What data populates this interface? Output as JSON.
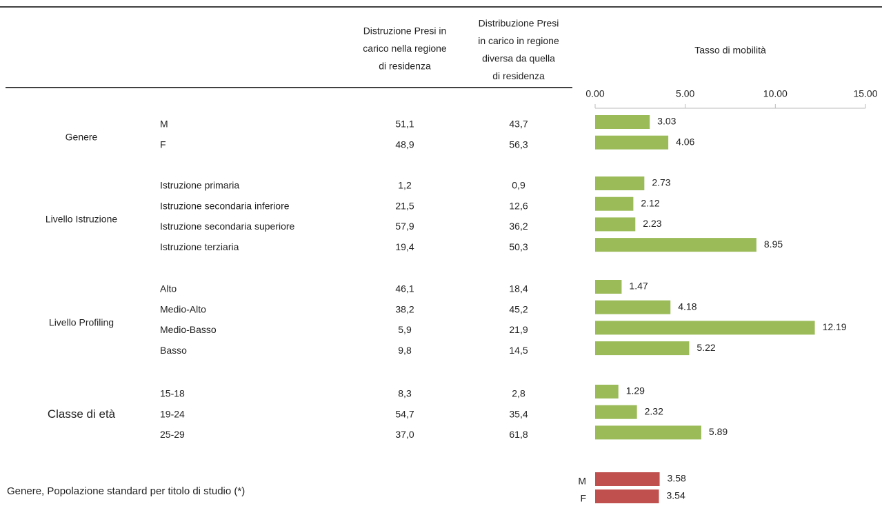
{
  "header": {
    "col1": [
      "Distruzione Presi in",
      "carico nella regione",
      "di residenza"
    ],
    "col2": [
      "Distribuzione Presi",
      "in carico in regione",
      "diversa da quella",
      "di residenza"
    ],
    "col3": "Tasso di mobilità"
  },
  "axis": {
    "xlim": [
      0,
      15
    ],
    "xticks": [
      {
        "value": 0,
        "label": "0.00"
      },
      {
        "value": 5,
        "label": "5.00"
      },
      {
        "value": 10,
        "label": "10.00"
      },
      {
        "value": 15,
        "label": "15.00"
      }
    ]
  },
  "groups": [
    {
      "label": "Genere",
      "rows": [
        {
          "label": "M",
          "col1": "51,1",
          "col2": "43,7",
          "rate": 3.03
        },
        {
          "label": "F",
          "col1": "48,9",
          "col2": "56,3",
          "rate": 4.06
        }
      ]
    },
    {
      "label": "Livello Istruzione",
      "rows": [
        {
          "label": "Istruzione primaria",
          "col1": "1,2",
          "col2": "0,9",
          "rate": 2.73
        },
        {
          "label": "Istruzione secondaria inferiore",
          "col1": "21,5",
          "col2": "12,6",
          "rate": 2.12
        },
        {
          "label": "Istruzione secondaria superiore",
          "col1": "57,9",
          "col2": "36,2",
          "rate": 2.23
        },
        {
          "label": "Istruzione terziaria",
          "col1": "19,4",
          "col2": "50,3",
          "rate": 8.95
        }
      ]
    },
    {
      "label": "Livello Profiling",
      "rows": [
        {
          "label": "Alto",
          "col1": "46,1",
          "col2": "18,4",
          "rate": 1.47
        },
        {
          "label": "Medio-Alto",
          "col1": "38,2",
          "col2": "45,2",
          "rate": 4.18
        },
        {
          "label": "Medio-Basso",
          "col1": "5,9",
          "col2": "21,9",
          "rate": 12.19
        },
        {
          "label": "Basso",
          "col1": "9,8",
          "col2": "14,5",
          "rate": 5.22
        }
      ]
    },
    {
      "label": "Classe di età",
      "rows": [
        {
          "label": "15-18",
          "col1": "8,3",
          "col2": "2,8",
          "rate": 1.29
        },
        {
          "label": "19-24",
          "col1": "54,7",
          "col2": "35,4",
          "rate": 2.32
        },
        {
          "label": "25-29",
          "col1": "37,0",
          "col2": "61,8",
          "rate": 5.89
        }
      ]
    }
  ],
  "footer": {
    "label": "Genere, Popolazione standard per titolo di studio (*)",
    "rows": [
      {
        "label": "M",
        "rate": 3.58
      },
      {
        "label": "F",
        "rate": 3.54
      }
    ]
  }
}
